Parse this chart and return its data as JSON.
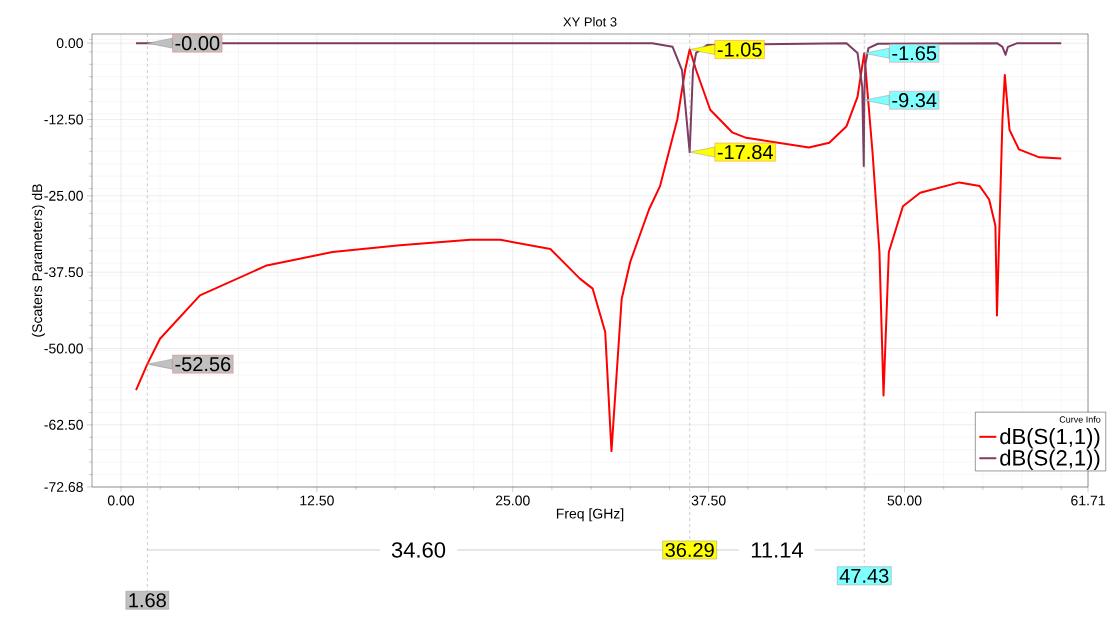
{
  "chart_data": {
    "type": "line",
    "title": "XY Plot 3",
    "xlabel": "Freq [GHz]",
    "ylabel": "(Scaters Parameters) dB",
    "legend_title": "Curve Info",
    "xlim": [
      -1.85,
      61.71
    ],
    "ylim": [
      -72.68,
      1.5
    ],
    "xticks": [
      {
        "value": 0,
        "label": "0.00"
      },
      {
        "value": 12.5,
        "label": "12.50"
      },
      {
        "value": 25,
        "label": "25.00"
      },
      {
        "value": 37.5,
        "label": "37.50"
      },
      {
        "value": 50,
        "label": "50.00"
      },
      {
        "value": 61.71,
        "label": "61.71"
      }
    ],
    "yticks": [
      {
        "value": 0,
        "label": "0.00"
      },
      {
        "value": -12.5,
        "label": "-12.50"
      },
      {
        "value": -25,
        "label": "-25.00"
      },
      {
        "value": -37.5,
        "label": "-37.50"
      },
      {
        "value": -50,
        "label": "-50.00"
      },
      {
        "value": -62.5,
        "label": "-62.50"
      },
      {
        "value": -72.68,
        "label": "-72.68"
      }
    ],
    "grid": true,
    "legend": "bottom right",
    "marker": "none",
    "line_style": "solid",
    "series": [
      {
        "name": "dB(S(1,1))",
        "color": "#ff0000",
        "x": [
          0.96,
          1.68,
          2.49,
          5.04,
          9.3,
          13.5,
          17.8,
          22.3,
          24.2,
          27.4,
          29.3,
          30.1,
          30.9,
          31.3,
          31.95,
          32.5,
          33.7,
          34.4,
          35.5,
          36.0,
          36.29,
          36.7,
          37.6,
          39.0,
          39.9,
          43.9,
          45.2,
          46.3,
          47.0,
          47.43,
          47.96,
          48.4,
          48.66,
          49.0,
          49.9,
          51.0,
          53.5,
          54.8,
          55.4,
          55.8,
          55.9,
          56.25,
          56.4,
          56.7,
          57.3,
          58.6,
          60.0
        ],
        "values": [
          -56.8,
          -52.56,
          -48.4,
          -41.3,
          -36.4,
          -34.2,
          -33.1,
          -32.2,
          -32.2,
          -33.7,
          -38.6,
          -40.2,
          -47.3,
          -66.8,
          -41.9,
          -35.8,
          -27.2,
          -23.4,
          -12.5,
          -4.4,
          -1.05,
          -4.4,
          -10.9,
          -14.6,
          -15.5,
          -17.1,
          -16.3,
          -13.6,
          -8.8,
          -1.65,
          -17.9,
          -34.2,
          -57.7,
          -34.2,
          -26.7,
          -24.5,
          -22.8,
          -23.4,
          -25.6,
          -29.9,
          -44.6,
          -12.5,
          -5.2,
          -14.2,
          -17.4,
          -18.7,
          -18.9
        ]
      },
      {
        "name": "dB(S(2,1))",
        "color": "#7d3c62",
        "x": [
          0.96,
          1.68,
          33.9,
          35.2,
          35.8,
          36.29,
          36.5,
          36.7,
          37.4,
          46.3,
          47.0,
          47.3,
          47.4,
          47.43,
          47.5,
          47.7,
          48.3,
          55.9,
          56.25,
          56.45,
          56.6,
          57.2,
          60.0
        ],
        "values": [
          0,
          0,
          0,
          -0.6,
          -4.4,
          -17.84,
          -4.4,
          -1.6,
          -0.3,
          0,
          -1.6,
          -7.1,
          -20.1,
          -9.34,
          -3.5,
          -0.8,
          -0.1,
          0,
          -0.6,
          -1.9,
          -0.6,
          0,
          0
        ]
      }
    ],
    "ref_lines": [
      {
        "axis": "x",
        "value": 1.68,
        "label": "1.68",
        "line_style": "dashed"
      },
      {
        "axis": "x",
        "value": 36.29,
        "label": "36.29",
        "line_style": "dashed"
      },
      {
        "axis": "x",
        "value": 47.43,
        "label": "47.43",
        "line_style": "dashed"
      }
    ],
    "annotations": [
      {
        "text": "-0.00",
        "x": 1.68,
        "y": 0
      },
      {
        "text": "-52.56",
        "x": 1.68,
        "y": -52.56
      },
      {
        "text": "-1.05",
        "x": 36.29,
        "y": -1.05
      },
      {
        "text": "-17.84",
        "x": 36.29,
        "y": -17.84
      },
      {
        "text": "-1.65",
        "x": 47.43,
        "y": -1.65
      },
      {
        "text": "-9.34",
        "x": 47.43,
        "y": -9.34
      },
      "34.60",
      "11.14"
    ]
  }
}
